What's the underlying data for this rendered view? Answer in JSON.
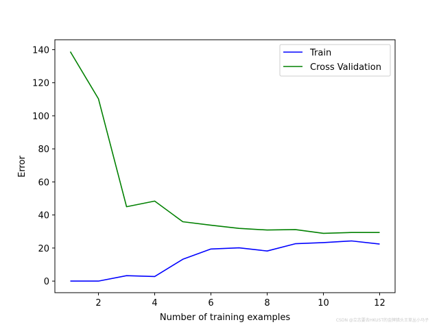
{
  "chart_data": {
    "type": "line",
    "title": "",
    "xlabel": "Number of training examples",
    "ylabel": "Error",
    "xlim": [
      0.45,
      12.55
    ],
    "ylim": [
      -7,
      146
    ],
    "xticks": [
      2,
      4,
      6,
      8,
      10,
      12
    ],
    "yticks": [
      0,
      20,
      40,
      60,
      80,
      100,
      120,
      140
    ],
    "grid": false,
    "legend_position": "top-right",
    "x": [
      1,
      2,
      3,
      4,
      5,
      6,
      7,
      8,
      9,
      10,
      11,
      12
    ],
    "series": [
      {
        "name": "Train",
        "color": "#0000ff",
        "values": [
          0.0,
          0.0,
          3.3,
          2.8,
          13.2,
          19.4,
          20.1,
          18.2,
          22.6,
          23.3,
          24.3,
          22.4
        ]
      },
      {
        "name": "Cross Validation",
        "color": "#008000",
        "values": [
          138.8,
          110.3,
          45.0,
          48.4,
          35.9,
          33.8,
          31.9,
          30.9,
          31.2,
          28.9,
          29.4,
          29.4
        ]
      }
    ]
  },
  "watermark": "CSDN @立志要去HKUST的金牌猎头王草丛小马子"
}
